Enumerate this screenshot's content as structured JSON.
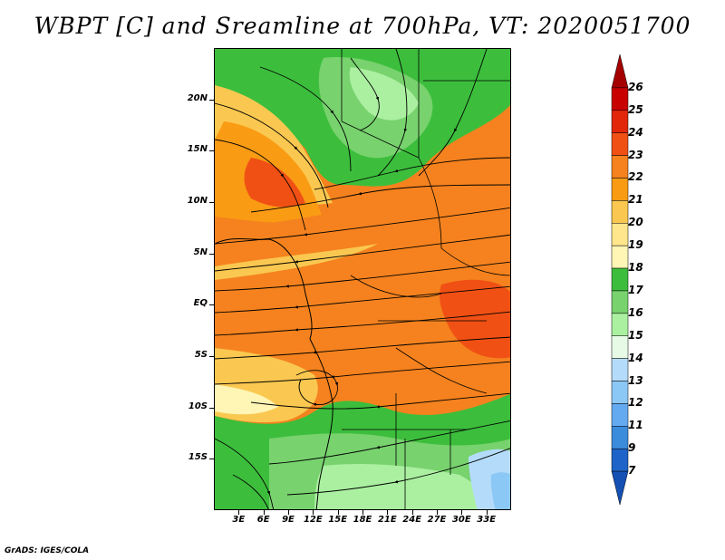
{
  "title": "WBPT [C] and Sreamline at 700hPa, VT: 2020051700",
  "footer": "GrADS: IGES/COLA",
  "map": {
    "variable": "Wet-bulb potential temperature",
    "level": "700hPa",
    "overlay": "streamlines",
    "lon_range": [
      0,
      36
    ],
    "lat_range": [
      -20,
      25
    ],
    "lat_labels": [
      "20N",
      "15N",
      "10N",
      "5N",
      "EQ",
      "5S",
      "10S",
      "15S"
    ],
    "lon_labels": [
      "3E",
      "6E",
      "9E",
      "12E",
      "15E",
      "18E",
      "21E",
      "24E",
      "27E",
      "30E",
      "33E"
    ]
  },
  "colorbar": {
    "labels": [
      "26",
      "25",
      "24",
      "23",
      "22",
      "21",
      "20",
      "19",
      "18",
      "17",
      "16",
      "15",
      "14",
      "13",
      "12",
      "11",
      "9",
      "7"
    ],
    "colors": [
      "#a50000",
      "#c80000",
      "#e1260a",
      "#f05014",
      "#f5821e",
      "#fa9b14",
      "#fac850",
      "#ffe68c",
      "#fff5b4",
      "#3cbe3c",
      "#78d26e",
      "#aaf0a0",
      "#e6fae6",
      "#b4dcfa",
      "#8cc8f5",
      "#64aaf0",
      "#3c8cdc",
      "#1e64c8",
      "#1450b4"
    ]
  }
}
